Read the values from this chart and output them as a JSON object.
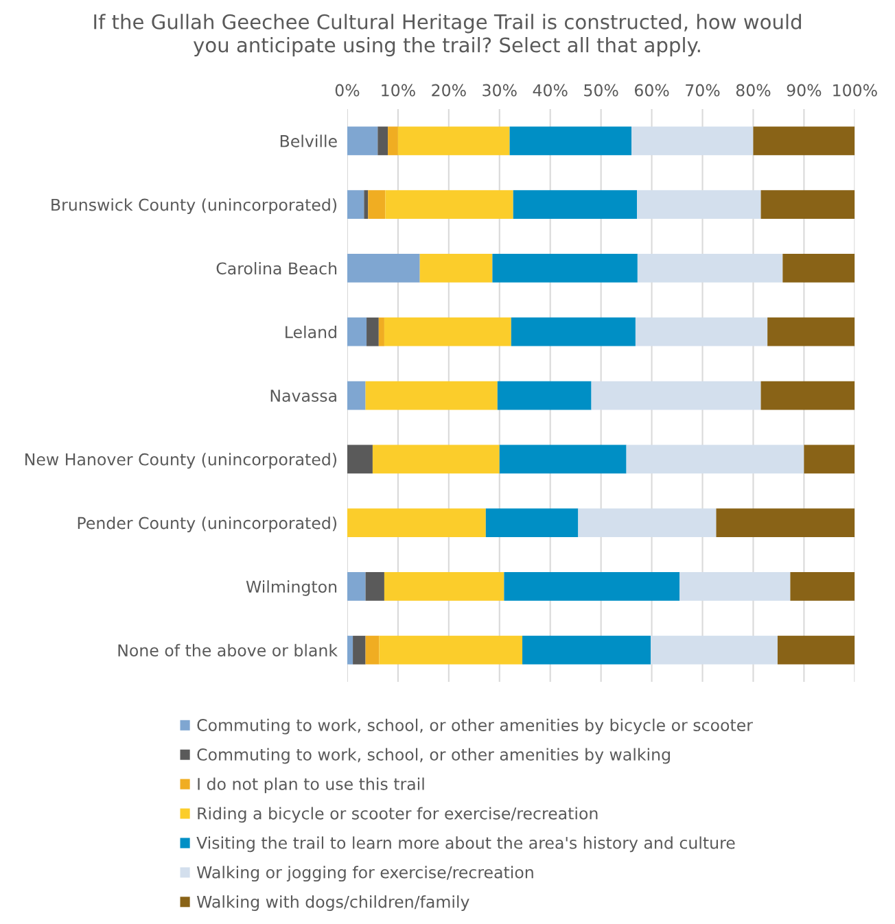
{
  "chart_data": {
    "type": "bar",
    "orientation": "horizontal",
    "stacked": true,
    "title": "If the Gullah Geechee Cultural Heritage Trail is constructed, how would\nyou anticipate using the trail? Select all that apply.",
    "categories": [
      "Belville",
      "Brunswick County (unincorporated)",
      "Carolina Beach",
      "Leland",
      "Navassa",
      "New Hanover County (unincorporated)",
      "Pender County (unincorporated)",
      "Wilmington",
      "None of the above or blank"
    ],
    "series": [
      {
        "name": "Commuting to work, school, or other amenities by bicycle or scooter",
        "color": "#7fa6d1",
        "values": [
          6,
          3.3,
          14.3,
          3.8,
          3.6,
          0,
          0,
          3.6,
          1.1
        ]
      },
      {
        "name": "Commuting to work, school, or other amenities by walking",
        "color": "#5a5a5a",
        "values": [
          2,
          0.8,
          0,
          2.4,
          0,
          5,
          0,
          3.7,
          2.5
        ]
      },
      {
        "name": "I do not plan to use this trail",
        "color": "#f0ad22",
        "values": [
          2,
          3.4,
          0,
          1.1,
          0,
          0,
          0,
          0,
          2.7
        ]
      },
      {
        "name": "Riding a bicycle or scooter for exercise/recreation",
        "color": "#fbcd2b",
        "values": [
          22,
          25.2,
          14.3,
          25.0,
          26.0,
          25,
          27.3,
          23.6,
          28.2
        ]
      },
      {
        "name": "Visiting the trail to learn more about the area's history and culture",
        "color": "#008fc5",
        "values": [
          24,
          24.4,
          28.6,
          24.5,
          18.5,
          25,
          18.2,
          34.6,
          25.3
        ]
      },
      {
        "name": "Walking or jogging for exercise/recreation",
        "color": "#d3dfed",
        "values": [
          24,
          24.4,
          28.6,
          26.0,
          33.4,
          35,
          27.2,
          21.8,
          25.0
        ]
      },
      {
        "name": "Walking with dogs/children/family",
        "color": "#896317",
        "values": [
          20,
          18.5,
          14.2,
          17.2,
          18.5,
          10,
          27.3,
          12.7,
          15.2
        ]
      }
    ],
    "xlim": [
      0,
      100
    ],
    "xticks": [
      {
        "value": 0,
        "label": "0%"
      },
      {
        "value": 10,
        "label": "10%"
      },
      {
        "value": 20,
        "label": "20%"
      },
      {
        "value": 30,
        "label": "30%"
      },
      {
        "value": 40,
        "label": "40%"
      },
      {
        "value": 50,
        "label": "50%"
      },
      {
        "value": 60,
        "label": "60%"
      },
      {
        "value": 70,
        "label": "70%"
      },
      {
        "value": 80,
        "label": "80%"
      },
      {
        "value": 90,
        "label": "90%"
      },
      {
        "value": 100,
        "label": "100%"
      }
    ],
    "grid": "x",
    "legend": "bottom"
  }
}
